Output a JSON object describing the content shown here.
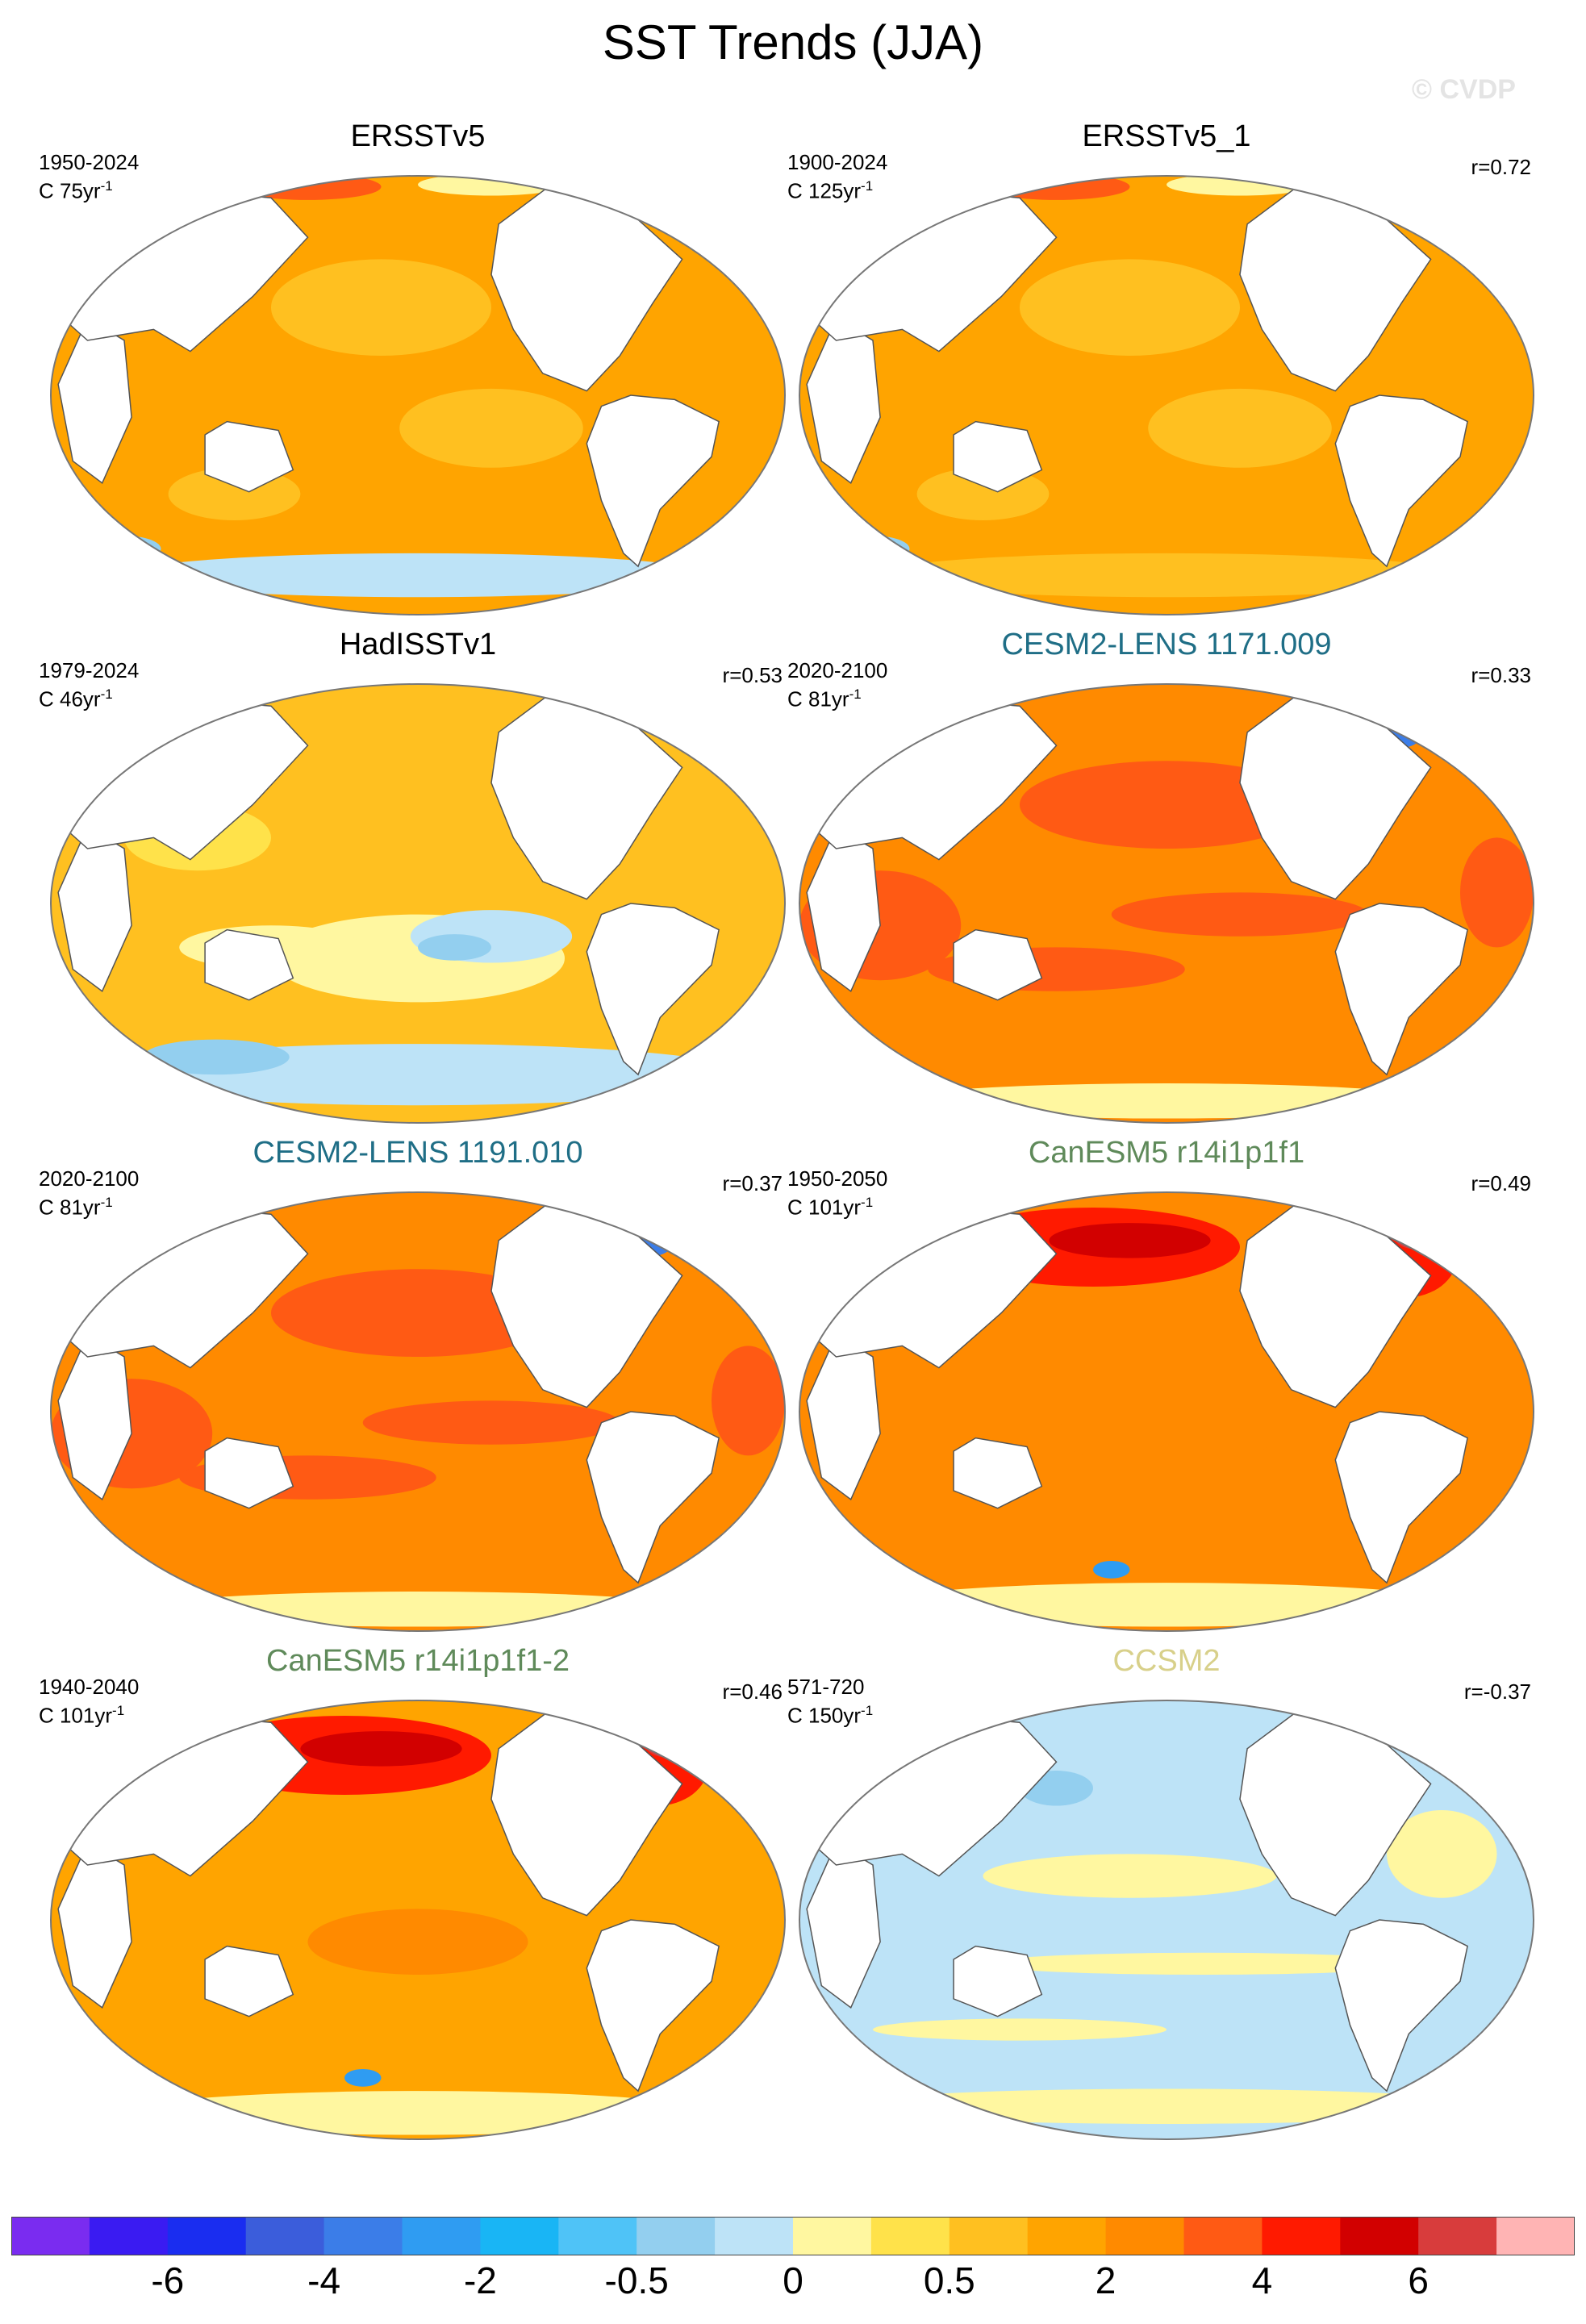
{
  "title": "SST Trends (JJA)",
  "watermark": "© CVDP",
  "chart_data": {
    "type": "heatmap",
    "title": "SST Trends (JJA)",
    "units": "C per period (yr^-1)",
    "colorbar": {
      "colors": [
        "#7a2cf0",
        "#3a1bf2",
        "#1a2df0",
        "#3b5ddb",
        "#3b7de8",
        "#2f9cf2",
        "#19b5f5",
        "#4fc3f7",
        "#93cfef",
        "#bde3f7",
        "#fff7a0",
        "#ffe24a",
        "#ffc020",
        "#ffa400",
        "#ff8a00",
        "#ff5a14",
        "#ff1a00",
        "#d20000",
        "#d83c3c",
        "#ffb4b4"
      ],
      "tick_labels": [
        "-6",
        "-4",
        "-2",
        "-0.5",
        "0",
        "0.5",
        "2",
        "4",
        "6"
      ],
      "tick_boundaries": [
        2,
        4,
        6,
        8,
        10,
        12,
        14,
        16,
        18
      ]
    },
    "panels": [
      {
        "name": "ERSSTv5",
        "period": "1950-2024",
        "scale": "C 75yr",
        "r": "",
        "name_color": "#000000",
        "base_color": "#ffa400",
        "pattern": "obs1"
      },
      {
        "name": "ERSSTv5_1",
        "period": "1900-2024",
        "scale": "C 125yr",
        "r": "r=0.72",
        "name_color": "#000000",
        "base_color": "#ffa400",
        "pattern": "obs2"
      },
      {
        "name": "HadISSTv1",
        "period": "1979-2024",
        "scale": "C 46yr",
        "r": "r=0.53",
        "name_color": "#000000",
        "base_color": "#ffc020",
        "pattern": "obs3"
      },
      {
        "name": "CESM2-LENS 1171.009",
        "period": "2020-2100",
        "scale": "C 81yr",
        "r": "r=0.33",
        "name_color": "#1f6e86",
        "base_color": "#ff8a00",
        "pattern": "cesm"
      },
      {
        "name": "CESM2-LENS 1191.010",
        "period": "2020-2100",
        "scale": "C 81yr",
        "r": "r=0.37",
        "name_color": "#1f6e86",
        "base_color": "#ff8a00",
        "pattern": "cesm"
      },
      {
        "name": "CanESM5 r14i1p1f1",
        "period": "1950-2050",
        "scale": "C 101yr",
        "r": "r=0.49",
        "name_color": "#5f8a5a",
        "base_color": "#ff8a00",
        "pattern": "can"
      },
      {
        "name": "CanESM5 r14i1p1f1-2",
        "period": "1940-2040",
        "scale": "C 101yr",
        "r": "r=0.46",
        "name_color": "#5f8a5a",
        "base_color": "#ffa400",
        "pattern": "can"
      },
      {
        "name": "CCSM2",
        "period": "571-720",
        "scale": "C 150yr",
        "r": "r=-0.37",
        "name_color": "#d8d08a",
        "base_color": "#bde3f7",
        "pattern": "ccsm"
      }
    ]
  },
  "superscript": "-1"
}
